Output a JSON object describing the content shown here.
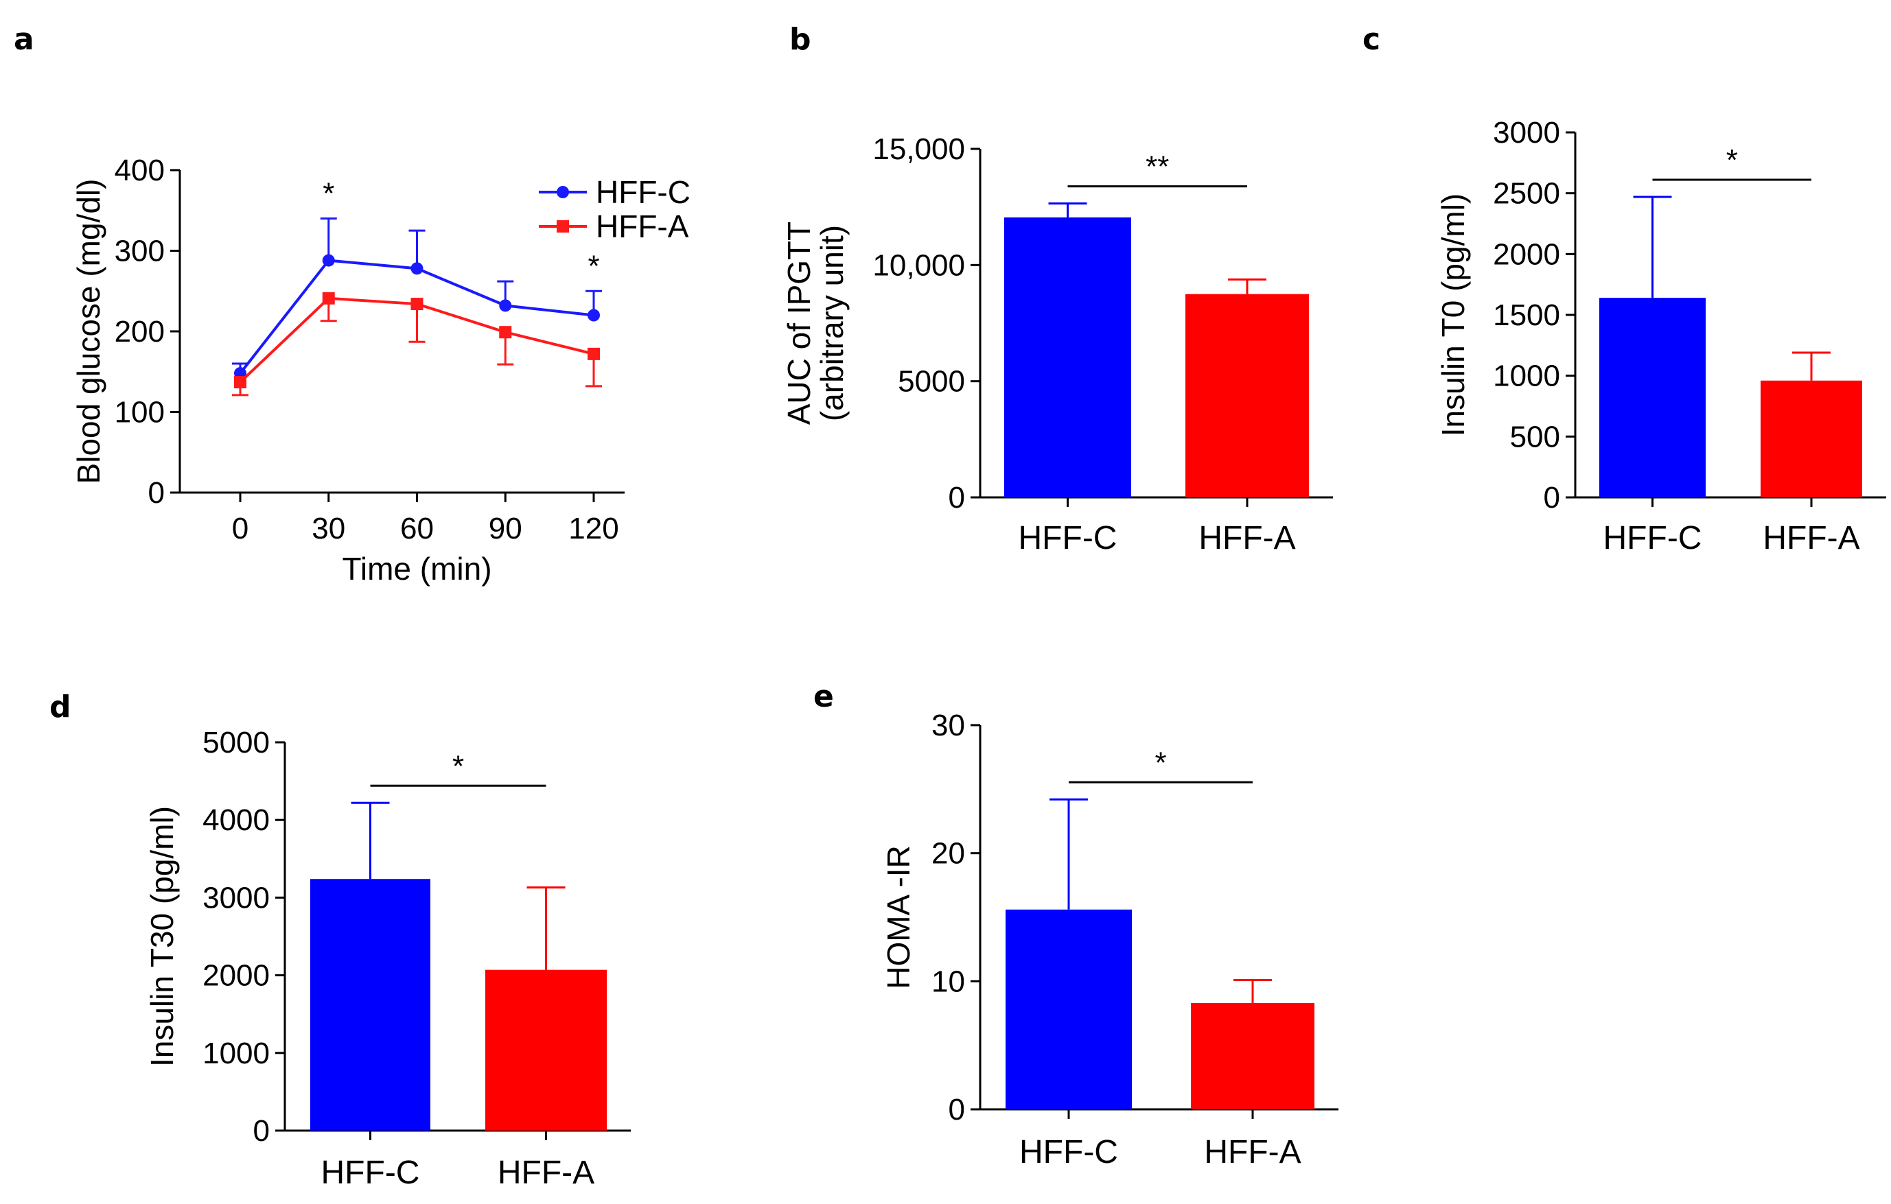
{
  "chart_data": [
    {
      "panel": "a",
      "type": "line",
      "xlabel": "Time (min)",
      "ylabel": "Blood glucose (mg/dl)",
      "x": [
        0,
        30,
        60,
        90,
        120
      ],
      "xticks": [
        "0",
        "30",
        "60",
        "90",
        "120"
      ],
      "yticks": [
        "0",
        "100",
        "200",
        "300",
        "400"
      ],
      "ylim": [
        0,
        400
      ],
      "series": [
        {
          "name": "HFF-C",
          "color": "#1a1aff",
          "marker": "circle",
          "values": [
            148,
            288,
            278,
            232,
            220
          ],
          "err": [
            12,
            52,
            47,
            30,
            30
          ]
        },
        {
          "name": "HFF-A",
          "color": "#ff1a1a",
          "marker": "square",
          "values": [
            137,
            241,
            234,
            199,
            172
          ],
          "err": [
            16,
            28,
            47,
            40,
            40
          ]
        }
      ],
      "significance": [
        {
          "x": 30,
          "label": "*"
        },
        {
          "x": 120,
          "label": "*"
        }
      ]
    },
    {
      "panel": "b",
      "type": "bar",
      "ylabel": "AUC of IPGTT",
      "ylabel2": "(arbitrary unit)",
      "categories": [
        "HFF-C",
        "HFF-A"
      ],
      "colors": [
        "#0000ff",
        "#ff0000"
      ],
      "values": [
        12050,
        8750
      ],
      "err": [
        600,
        630
      ],
      "yticks": [
        "0",
        "5000",
        "10,000",
        "15,000"
      ],
      "ylim": [
        0,
        15000
      ],
      "significance": "**"
    },
    {
      "panel": "c",
      "type": "bar",
      "ylabel": "Insulin T0 (pg/ml)",
      "categories": [
        "HFF-C",
        "HFF-A"
      ],
      "colors": [
        "#0000ff",
        "#ff0000"
      ],
      "values": [
        1640,
        960
      ],
      "err": [
        830,
        230
      ],
      "yticks": [
        "0",
        "500",
        "1000",
        "1500",
        "2000",
        "2500",
        "3000"
      ],
      "ylim": [
        0,
        3000
      ],
      "significance": "*"
    },
    {
      "panel": "d",
      "type": "bar",
      "ylabel": "Insulin T30 (pg/ml)",
      "categories": [
        "HFF-C",
        "HFF-A"
      ],
      "colors": [
        "#0000ff",
        "#ff0000"
      ],
      "values": [
        3240,
        2070
      ],
      "err": [
        980,
        1060
      ],
      "yticks": [
        "0",
        "1000",
        "2000",
        "3000",
        "4000",
        "5000"
      ],
      "ylim": [
        0,
        5000
      ],
      "significance": "*"
    },
    {
      "panel": "e",
      "type": "bar",
      "ylabel": "HOMA -IR",
      "categories": [
        "HFF-C",
        "HFF-A"
      ],
      "colors": [
        "#0000ff",
        "#ff0000"
      ],
      "values": [
        15.6,
        8.3
      ],
      "err": [
        8.6,
        1.8
      ],
      "yticks": [
        "0",
        "10",
        "20",
        "30"
      ],
      "ylim": [
        0,
        30
      ],
      "significance": "*"
    }
  ]
}
